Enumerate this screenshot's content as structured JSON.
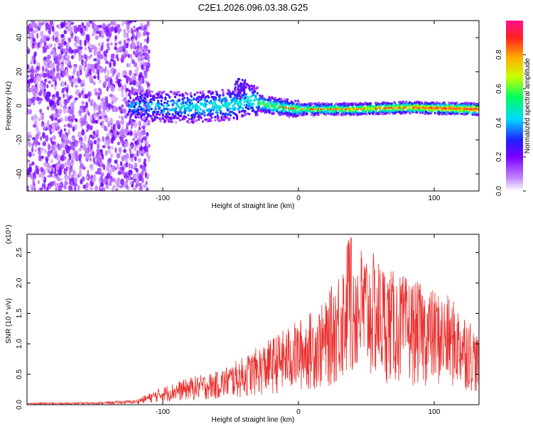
{
  "title": "C2E1.2026.096.03.38.G25",
  "chart_data": [
    {
      "type": "heatmap",
      "xlabel": "Height of straight line (km)",
      "ylabel": "Frequency (Hz)",
      "xlim": [
        -200,
        133
      ],
      "ylim": [
        -50,
        50
      ],
      "x_ticks": [
        -100,
        0,
        100
      ],
      "x_tick_labels": [
        "-100",
        "0",
        "100"
      ],
      "y_ticks": [
        -40,
        -20,
        0,
        20,
        40
      ],
      "y_tick_labels": [
        "-40",
        "-20",
        "0",
        "20",
        "40"
      ],
      "colorbar": {
        "label": "Normalized spectral amplitude",
        "range": [
          0,
          1
        ],
        "ticks": [
          0.0,
          0.2,
          0.4,
          0.6,
          0.8
        ],
        "tick_labels": [
          "0.0",
          "0.2",
          "0.4",
          "0.6",
          "0.8"
        ]
      },
      "features": {
        "noise_region_x": [
          -200,
          -110
        ],
        "signal_center_hz": [
          [
            -120,
            0
          ],
          [
            -80,
            -1
          ],
          [
            -60,
            0
          ],
          [
            -45,
            1
          ],
          [
            -38,
            4
          ],
          [
            -30,
            2
          ],
          [
            -20,
            0
          ],
          [
            -10,
            -1
          ],
          [
            0,
            -2
          ],
          [
            40,
            -2
          ],
          [
            80,
            -1
          ],
          [
            133,
            -2
          ]
        ],
        "burst": {
          "x": -43,
          "y": 14,
          "description": "upward spike near -45 km"
        }
      }
    },
    {
      "type": "line",
      "xlabel": "Height of straight line (km)",
      "ylabel": "SNR (10 * v/v)",
      "y_multiplier_label": "(x10⁴)",
      "xlim": [
        -200,
        133
      ],
      "ylim": [
        0,
        2.8
      ],
      "x_ticks": [
        -100,
        0,
        100
      ],
      "x_tick_labels": [
        "-100",
        "0",
        "100"
      ],
      "y_ticks": [
        0.0,
        0.5,
        1.0,
        1.5,
        2.0,
        2.5
      ],
      "y_tick_labels": [
        "0.0",
        "0.5",
        "1.0",
        "1.5",
        "2.0",
        "2.5"
      ],
      "series_color": "#e8312f",
      "envelope": [
        [
          -200,
          0.03
        ],
        [
          -150,
          0.04
        ],
        [
          -120,
          0.08
        ],
        [
          -100,
          0.3
        ],
        [
          -80,
          0.45
        ],
        [
          -60,
          0.55
        ],
        [
          -40,
          0.8
        ],
        [
          -20,
          1.1
        ],
        [
          0,
          1.4
        ],
        [
          20,
          1.7
        ],
        [
          38,
          2.75
        ],
        [
          55,
          2.5
        ],
        [
          70,
          2.2
        ],
        [
          90,
          2.0
        ],
        [
          110,
          1.8
        ],
        [
          125,
          1.5
        ],
        [
          133,
          1.1
        ]
      ]
    }
  ]
}
